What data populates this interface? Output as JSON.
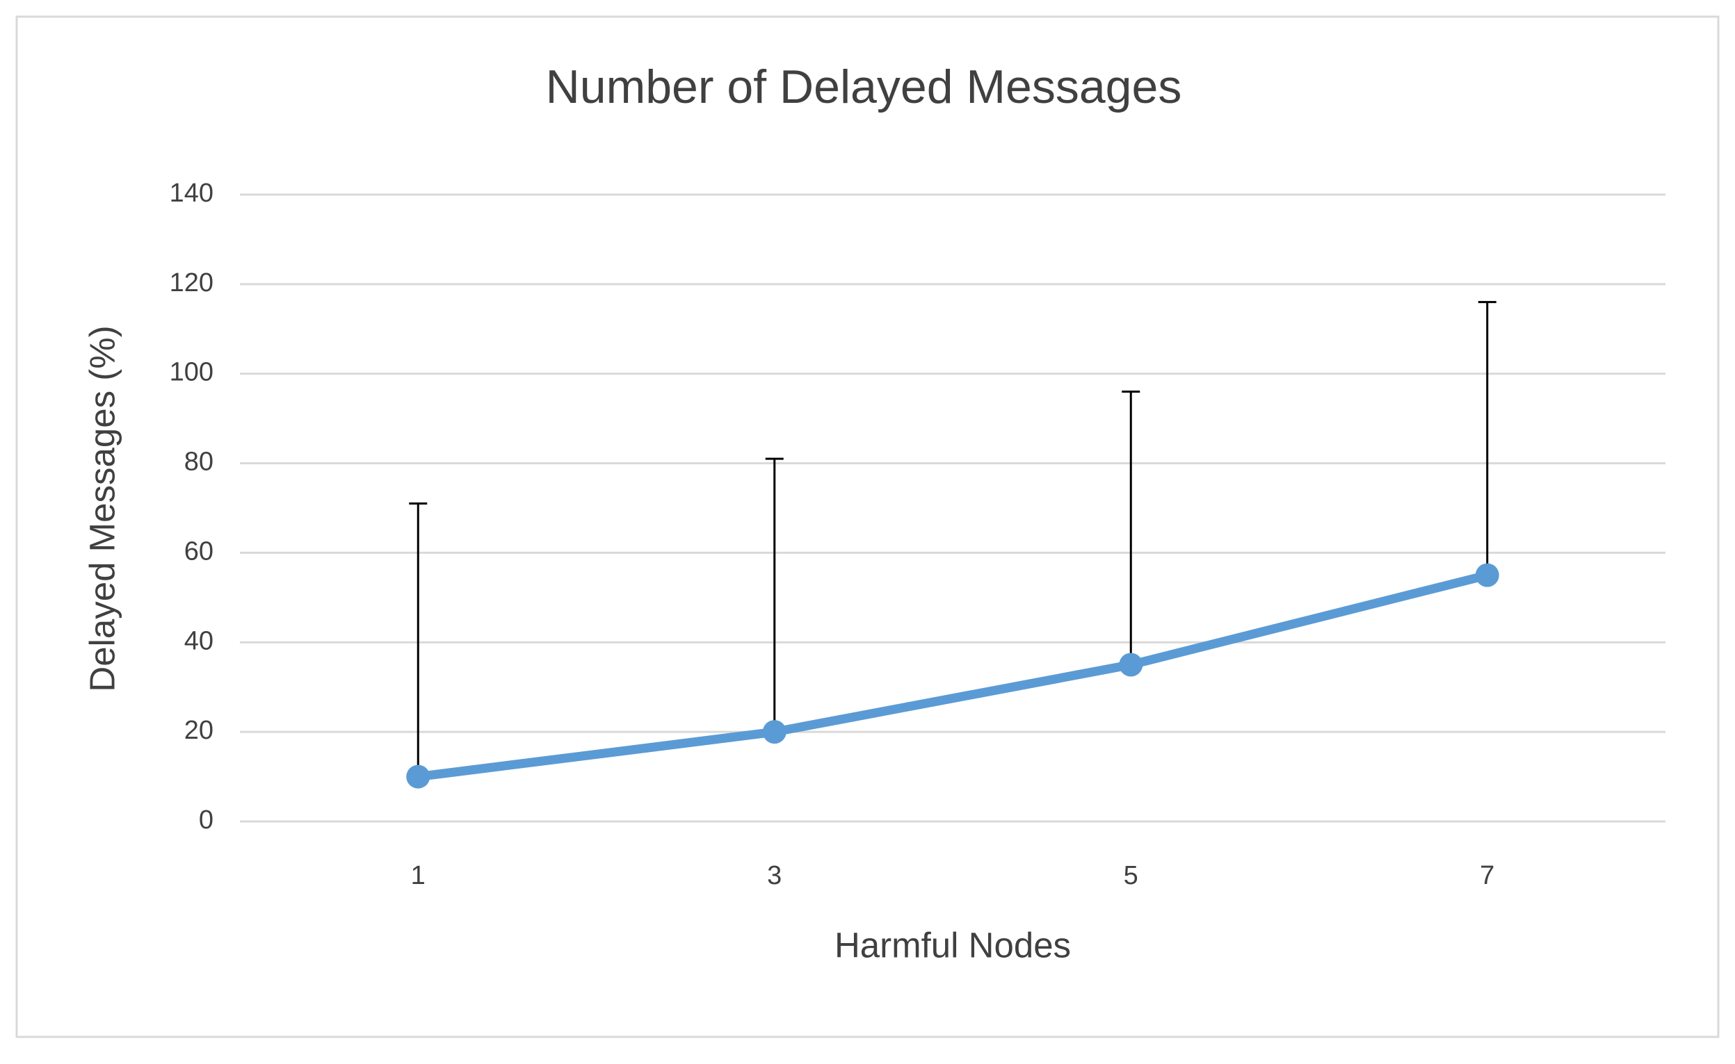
{
  "chart_data": {
    "type": "line",
    "title": "Number of Delayed Messages",
    "x_label": "Harmful Nodes",
    "y_label": "Delayed Messages (%)",
    "categories": [
      "1",
      "3",
      "5",
      "7"
    ],
    "series": [
      {
        "color": "#5b9bd5",
        "values": [
          10,
          20,
          35,
          55
        ],
        "errors": [
          61,
          61,
          61,
          61
        ]
      }
    ],
    "ylim": [
      0,
      140
    ],
    "yticks": [
      0,
      20,
      40,
      60,
      80,
      100,
      120,
      140
    ],
    "grid": true
  }
}
